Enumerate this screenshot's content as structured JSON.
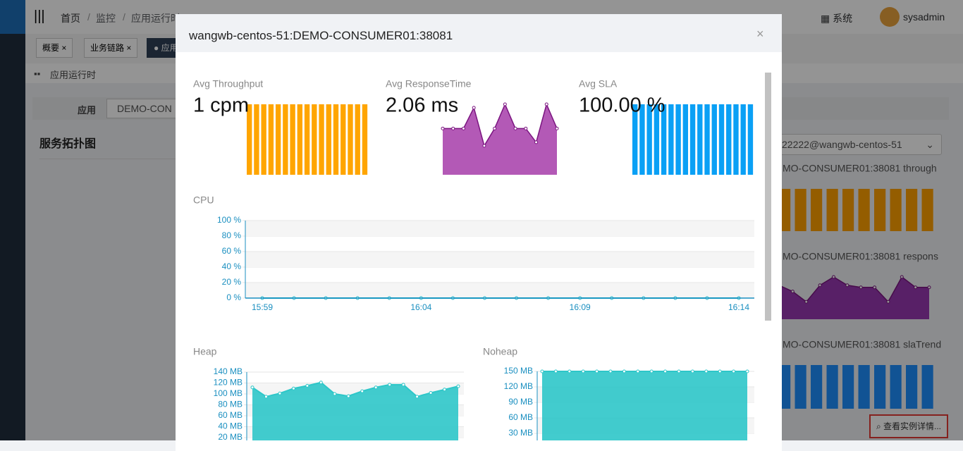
{
  "header": {
    "nav": [
      "首页",
      "监控",
      "应用运行时"
    ],
    "menu": "系统",
    "user": "sysadmin"
  },
  "tabs": [
    "概要",
    "业务链路",
    "应用"
  ],
  "breadcrumb": "应用运行时",
  "filter": {
    "label": "应用",
    "value": "DEMO-CON"
  },
  "section_title": "服务拓扑图",
  "right_panel": {
    "instance": "22222@wangwb-centos-51",
    "charts": [
      {
        "title": "MO-CONSUMER01:38081 through",
        "type": "bar",
        "color": "#ffa000",
        "values": [
          1,
          1,
          1,
          1,
          1,
          1,
          1,
          1,
          1,
          1
        ]
      },
      {
        "title": "MO-CONSUMER01:38081 respons",
        "type": "area",
        "color": "#8e24aa",
        "values": [
          2.2,
          1.9,
          1.4,
          2.2,
          2.6,
          2.2,
          2.1,
          2.1,
          1.4,
          2.6,
          2.1,
          2.1
        ]
      },
      {
        "title": "MO-CONSUMER01:38081 slaTrend",
        "type": "bar",
        "color": "#1e90ff",
        "values": [
          100,
          100,
          100,
          100,
          100,
          100,
          100,
          100,
          100,
          100
        ]
      }
    ],
    "button": "查看实例详情..."
  },
  "modal": {
    "title": "wangwb-centos-51:DEMO-CONSUMER01:38081",
    "stats": [
      {
        "label": "Avg Throughput",
        "value": "1 cpm",
        "chart": {
          "type": "bar",
          "color": "#ffa500",
          "values": [
            1,
            1,
            1,
            1,
            1,
            1,
            1,
            1,
            1,
            1,
            1,
            1,
            1,
            1,
            1,
            1,
            1
          ]
        }
      },
      {
        "label": "Avg ResponseTime",
        "value": "2.06 ms",
        "chart": {
          "type": "area",
          "color": "#ab47ae",
          "values": [
            2.0,
            2.0,
            2.0,
            2.6,
            1.5,
            2.0,
            2.7,
            2.0,
            2.0,
            1.6,
            2.7,
            2.0
          ]
        }
      },
      {
        "label": "Avg SLA",
        "value": "100.00 %",
        "chart": {
          "type": "bar",
          "color": "#0aa0f5",
          "values": [
            100,
            100,
            100,
            100,
            100,
            100,
            100,
            100,
            100,
            100,
            100,
            100,
            100,
            100,
            100,
            100,
            100
          ]
        }
      }
    ],
    "cpu": {
      "type": "line",
      "title": "CPU",
      "color": "#1ab5c8",
      "categories": [
        "15:59",
        null,
        null,
        null,
        null,
        "16:04",
        null,
        null,
        null,
        null,
        "16:09",
        null,
        null,
        null,
        null,
        "16:14"
      ],
      "values": [
        0,
        0,
        0,
        0,
        0,
        0,
        0,
        0,
        0,
        0,
        0,
        0,
        0,
        0,
        0,
        0
      ],
      "ylim": [
        0,
        100
      ],
      "yticks": [
        {
          "value": 0,
          "label": "0 %"
        },
        {
          "value": 20,
          "label": "20 %"
        },
        {
          "value": 40,
          "label": "40 %"
        },
        {
          "value": 60,
          "label": "60 %"
        },
        {
          "value": 80,
          "label": "80 %"
        },
        {
          "value": 100,
          "label": "100 %"
        }
      ]
    },
    "heap": {
      "type": "area",
      "title": "Heap",
      "color": "#2ec7c9",
      "values": [
        112,
        95,
        101,
        110,
        115,
        121,
        100,
        96,
        105,
        112,
        117,
        117,
        95,
        102,
        108,
        114
      ],
      "ylim": [
        0,
        140
      ],
      "yticks": [
        {
          "value": 20,
          "label": "20 MB"
        },
        {
          "value": 40,
          "label": "40 MB"
        },
        {
          "value": 60,
          "label": "60 MB"
        },
        {
          "value": 80,
          "label": "80 MB"
        },
        {
          "value": 100,
          "label": "100 MB"
        },
        {
          "value": 120,
          "label": "120 MB"
        },
        {
          "value": 140,
          "label": "140 MB"
        }
      ]
    },
    "noheap": {
      "type": "area",
      "title": "Noheap",
      "color": "#2ec7c9",
      "values": [
        150,
        150,
        150,
        150,
        150,
        150,
        150,
        150,
        150,
        150,
        150,
        150,
        150,
        150,
        150,
        150
      ],
      "ylim": [
        0,
        150
      ],
      "yticks": [
        {
          "value": 30,
          "label": "30 MB"
        },
        {
          "value": 60,
          "label": "60 MB"
        },
        {
          "value": 90,
          "label": "90 MB"
        },
        {
          "value": 120,
          "label": "120 MB"
        },
        {
          "value": 150,
          "label": "150 MB"
        }
      ]
    }
  }
}
